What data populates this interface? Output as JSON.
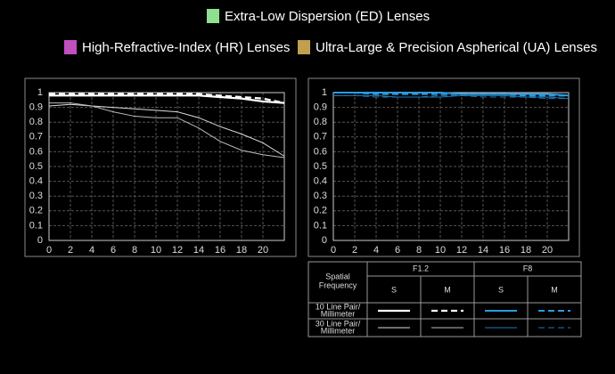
{
  "legend": [
    {
      "label": "Extra-Low Dispersion (ED) Lenses",
      "color": "#8fe08f"
    },
    {
      "label": "High-Refractive-Index (HR) Lenses",
      "color": "#c050c0"
    },
    {
      "label": "Ultra-Large & Precision Aspherical (UA) Lenses",
      "color": "#c0a050"
    }
  ],
  "chart_data": [
    {
      "type": "line",
      "x": [
        0,
        2,
        4,
        6,
        8,
        10,
        12,
        14,
        16,
        18,
        20,
        22
      ],
      "xlim": [
        0,
        22
      ],
      "xticks": [
        0,
        2,
        4,
        6,
        8,
        10,
        12,
        14,
        16,
        18,
        20
      ],
      "ylim": [
        0,
        1
      ],
      "yticks": [
        0,
        0.1,
        0.2,
        0.3,
        0.4,
        0.5,
        0.6,
        0.7,
        0.8,
        0.9,
        1
      ],
      "grid": true,
      "series": [
        {
          "color": "#ffffff",
          "width": 2.2,
          "dashed": false,
          "values": [
            0.98,
            0.98,
            0.98,
            0.98,
            0.98,
            0.98,
            0.98,
            0.98,
            0.97,
            0.96,
            0.94,
            0.93
          ]
        },
        {
          "color": "#ffffff",
          "width": 2.2,
          "dashed": true,
          "values": [
            0.99,
            0.99,
            0.99,
            0.99,
            0.99,
            0.99,
            0.99,
            0.99,
            0.98,
            0.97,
            0.96,
            0.93
          ]
        },
        {
          "color": "#dddddd",
          "width": 1,
          "dashed": false,
          "values": [
            0.91,
            0.92,
            0.91,
            0.9,
            0.89,
            0.88,
            0.87,
            0.83,
            0.77,
            0.72,
            0.66,
            0.57
          ]
        },
        {
          "color": "#bbbbbb",
          "width": 1,
          "dashed": false,
          "values": [
            0.93,
            0.93,
            0.91,
            0.87,
            0.84,
            0.83,
            0.83,
            0.76,
            0.67,
            0.61,
            0.58,
            0.56
          ]
        }
      ]
    },
    {
      "type": "line",
      "x": [
        0,
        2,
        4,
        6,
        8,
        10,
        12,
        14,
        16,
        18,
        20,
        22
      ],
      "xlim": [
        0,
        22
      ],
      "xticks": [
        0,
        2,
        4,
        6,
        8,
        10,
        12,
        14,
        16,
        18,
        20
      ],
      "ylim": [
        0,
        1
      ],
      "yticks": [
        0,
        0.1,
        0.2,
        0.3,
        0.4,
        0.5,
        0.6,
        0.7,
        0.8,
        0.9,
        1
      ],
      "grid": true,
      "series": [
        {
          "color": "#2a9be0",
          "width": 2,
          "dashed": false,
          "values": [
            1,
            1,
            1,
            1,
            1,
            1,
            0.99,
            0.99,
            0.99,
            0.99,
            0.99,
            0.98
          ]
        },
        {
          "color": "#2a9be0",
          "width": 2,
          "dashed": true,
          "values": [
            1,
            1,
            0.99,
            0.99,
            0.99,
            0.99,
            0.99,
            0.99,
            0.99,
            0.98,
            0.98,
            0.98
          ]
        },
        {
          "color": "#1f78b8",
          "width": 1,
          "dashed": false,
          "values": [
            0.98,
            0.98,
            0.98,
            0.97,
            0.97,
            0.97,
            0.98,
            0.98,
            0.98,
            0.97,
            0.97,
            0.96
          ]
        },
        {
          "color": "#1f78b8",
          "width": 1,
          "dashed": true,
          "values": [
            0.98,
            0.98,
            0.97,
            0.97,
            0.97,
            0.98,
            0.98,
            0.97,
            0.97,
            0.97,
            0.96,
            0.96
          ]
        }
      ]
    }
  ],
  "key_table": {
    "header": [
      "Spatial",
      "Frequency"
    ],
    "apertures": [
      "F1.2",
      "F8"
    ],
    "subheaders": [
      "S",
      "M",
      "S",
      "M"
    ],
    "rows": [
      [
        "10 Line Pair/",
        "Millimeter"
      ],
      [
        "30 Line Pair/",
        "Millimeter"
      ]
    ]
  }
}
